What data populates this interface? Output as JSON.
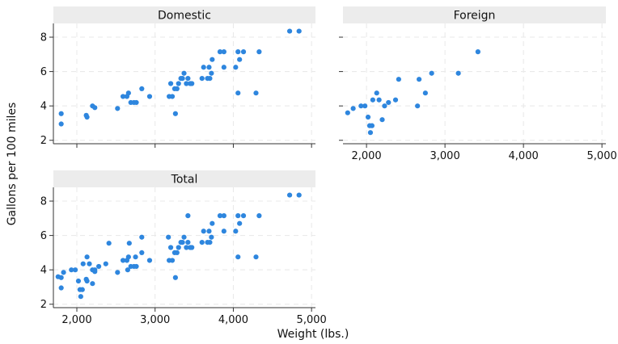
{
  "chart_data": {
    "type": "scatter",
    "xlabel": "Weight (lbs.)",
    "ylabel": "Gallons per 100 miles",
    "xlim": [
      1700,
      5050
    ],
    "ylim": [
      1.8,
      8.8
    ],
    "xticks": [
      2000,
      3000,
      4000,
      5000
    ],
    "xtick_labels": [
      "2,000",
      "3,000",
      "4,000",
      "5,000"
    ],
    "yticks": [
      2,
      4,
      6,
      8
    ],
    "ytick_labels": [
      "2",
      "4",
      "6",
      "8"
    ],
    "grid": true,
    "color": "#2e86de",
    "panels": [
      {
        "title": "Domestic",
        "points": [
          [
            1800,
            3.55
          ],
          [
            1800,
            2.95
          ],
          [
            2120,
            3.45
          ],
          [
            2130,
            3.35
          ],
          [
            2200,
            4.0
          ],
          [
            2230,
            3.9
          ],
          [
            2520,
            3.85
          ],
          [
            2590,
            4.55
          ],
          [
            2640,
            4.55
          ],
          [
            2660,
            4.75
          ],
          [
            2690,
            4.2
          ],
          [
            2730,
            4.2
          ],
          [
            2760,
            4.2
          ],
          [
            2830,
            5.0
          ],
          [
            2930,
            4.55
          ],
          [
            3180,
            4.55
          ],
          [
            3200,
            5.3
          ],
          [
            3220,
            4.55
          ],
          [
            3250,
            5.0
          ],
          [
            3260,
            3.55
          ],
          [
            3280,
            5.0
          ],
          [
            3300,
            5.3
          ],
          [
            3330,
            5.6
          ],
          [
            3350,
            5.6
          ],
          [
            3370,
            5.9
          ],
          [
            3400,
            5.3
          ],
          [
            3420,
            5.6
          ],
          [
            3450,
            5.3
          ],
          [
            3470,
            5.3
          ],
          [
            3600,
            5.6
          ],
          [
            3620,
            6.25
          ],
          [
            3670,
            5.6
          ],
          [
            3690,
            6.25
          ],
          [
            3700,
            5.6
          ],
          [
            3720,
            5.9
          ],
          [
            3730,
            6.7
          ],
          [
            3830,
            7.15
          ],
          [
            3880,
            7.15
          ],
          [
            3880,
            6.25
          ],
          [
            4030,
            6.25
          ],
          [
            4060,
            7.15
          ],
          [
            4060,
            4.75
          ],
          [
            4080,
            6.7
          ],
          [
            4130,
            7.15
          ],
          [
            4290,
            4.75
          ],
          [
            4330,
            7.15
          ],
          [
            4720,
            8.35
          ],
          [
            4840,
            8.35
          ]
        ]
      },
      {
        "title": "Foreign",
        "points": [
          [
            1760,
            3.6
          ],
          [
            1830,
            3.85
          ],
          [
            1930,
            4.0
          ],
          [
            1980,
            4.0
          ],
          [
            2020,
            3.35
          ],
          [
            2040,
            2.85
          ],
          [
            2050,
            2.45
          ],
          [
            2070,
            2.85
          ],
          [
            2080,
            4.35
          ],
          [
            2130,
            4.75
          ],
          [
            2160,
            4.35
          ],
          [
            2200,
            3.2
          ],
          [
            2230,
            4.0
          ],
          [
            2280,
            4.2
          ],
          [
            2370,
            4.35
          ],
          [
            2410,
            5.55
          ],
          [
            2650,
            4.0
          ],
          [
            2670,
            5.55
          ],
          [
            2750,
            4.75
          ],
          [
            2830,
            5.9
          ],
          [
            3170,
            5.9
          ],
          [
            3420,
            7.15
          ]
        ]
      },
      {
        "title": "Total",
        "points": [
          [
            1760,
            3.6
          ],
          [
            1800,
            3.55
          ],
          [
            1800,
            2.95
          ],
          [
            1830,
            3.85
          ],
          [
            1930,
            4.0
          ],
          [
            1980,
            4.0
          ],
          [
            2020,
            3.35
          ],
          [
            2040,
            2.85
          ],
          [
            2050,
            2.45
          ],
          [
            2070,
            2.85
          ],
          [
            2080,
            4.35
          ],
          [
            2120,
            3.45
          ],
          [
            2130,
            3.35
          ],
          [
            2130,
            4.75
          ],
          [
            2160,
            4.35
          ],
          [
            2200,
            3.2
          ],
          [
            2200,
            4.0
          ],
          [
            2230,
            4.0
          ],
          [
            2230,
            3.9
          ],
          [
            2280,
            4.2
          ],
          [
            2370,
            4.35
          ],
          [
            2410,
            5.55
          ],
          [
            2520,
            3.85
          ],
          [
            2590,
            4.55
          ],
          [
            2640,
            4.55
          ],
          [
            2650,
            4.0
          ],
          [
            2660,
            4.75
          ],
          [
            2670,
            5.55
          ],
          [
            2690,
            4.2
          ],
          [
            2730,
            4.2
          ],
          [
            2750,
            4.75
          ],
          [
            2760,
            4.2
          ],
          [
            2830,
            5.0
          ],
          [
            2830,
            5.9
          ],
          [
            2930,
            4.55
          ],
          [
            3170,
            5.9
          ],
          [
            3180,
            4.55
          ],
          [
            3200,
            5.3
          ],
          [
            3220,
            4.55
          ],
          [
            3250,
            5.0
          ],
          [
            3260,
            3.55
          ],
          [
            3280,
            5.0
          ],
          [
            3300,
            5.3
          ],
          [
            3330,
            5.6
          ],
          [
            3350,
            5.6
          ],
          [
            3370,
            5.9
          ],
          [
            3400,
            5.3
          ],
          [
            3420,
            5.6
          ],
          [
            3420,
            7.15
          ],
          [
            3450,
            5.3
          ],
          [
            3470,
            5.3
          ],
          [
            3600,
            5.6
          ],
          [
            3620,
            6.25
          ],
          [
            3670,
            5.6
          ],
          [
            3690,
            6.25
          ],
          [
            3700,
            5.6
          ],
          [
            3720,
            5.9
          ],
          [
            3730,
            6.7
          ],
          [
            3830,
            7.15
          ],
          [
            3880,
            7.15
          ],
          [
            3880,
            6.25
          ],
          [
            4030,
            6.25
          ],
          [
            4060,
            7.15
          ],
          [
            4060,
            4.75
          ],
          [
            4080,
            6.7
          ],
          [
            4130,
            7.15
          ],
          [
            4290,
            4.75
          ],
          [
            4330,
            7.15
          ],
          [
            4720,
            8.35
          ],
          [
            4840,
            8.35
          ]
        ]
      }
    ]
  }
}
